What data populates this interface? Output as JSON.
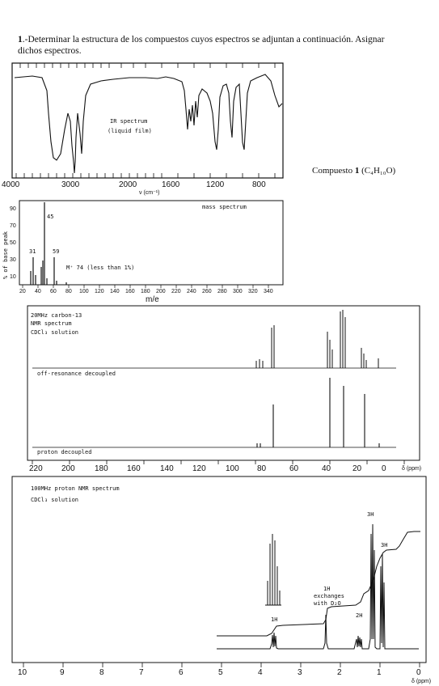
{
  "heading": {
    "number": "1",
    "text": ".-Determinar la estructura de los compuestos cuyos espectros se adjuntan a continuación. Asignar dichos espectros."
  },
  "compound_label": "Compuesto",
  "compound_number": "1",
  "compound_formula": "(C₄H₁₀O)",
  "ir": {
    "title_line1": "IR spectrum",
    "title_line2": "(liquid film)",
    "axis_unit": "ν (cm⁻¹)",
    "ticks": [
      "4000",
      "3000",
      "2000",
      "1600",
      "1200",
      "800"
    ]
  },
  "ms": {
    "title": "mass spectrum",
    "ylabel": "% of base peak",
    "xlabel": "m/e",
    "peak_labels": [
      "31",
      "45",
      "59"
    ],
    "molecular_ion": "M⁺ 74 (less than 1%)",
    "y_ticks": [
      "90",
      "70",
      "50",
      "30",
      "10"
    ],
    "x_ticks": [
      "20",
      "40",
      "60",
      "80",
      "100",
      "120",
      "140",
      "160",
      "180",
      "200",
      "220",
      "240",
      "260",
      "280",
      "300",
      "320",
      "340"
    ]
  },
  "c13": {
    "title_line1": "20MHz carbon-13",
    "title_line2": "NMR spectrum",
    "title_line3": "CDCl₃ solution",
    "off_label": "off-resonance decoupled",
    "proton_label": "proton decoupled",
    "axis_unit": "δ (ppm)",
    "ticks": [
      "220",
      "200",
      "180",
      "160",
      "140",
      "120",
      "100",
      "80",
      "60",
      "40",
      "20",
      "0"
    ]
  },
  "h1": {
    "title_line1": "100MHz proton NMR spectrum",
    "title_line2": "CDCl₃ solution",
    "label_1h": "1H",
    "label_exch_1": "1H",
    "label_exch_2": "exchanges",
    "label_exch_3": "with D₂O",
    "label_2h": "2H",
    "label_3h_a": "3H",
    "label_3h_b": "3H",
    "axis_unit": "δ (ppm)",
    "ticks": [
      "10",
      "9",
      "8",
      "7",
      "6",
      "5",
      "4",
      "3",
      "2",
      "1",
      "0"
    ]
  }
}
